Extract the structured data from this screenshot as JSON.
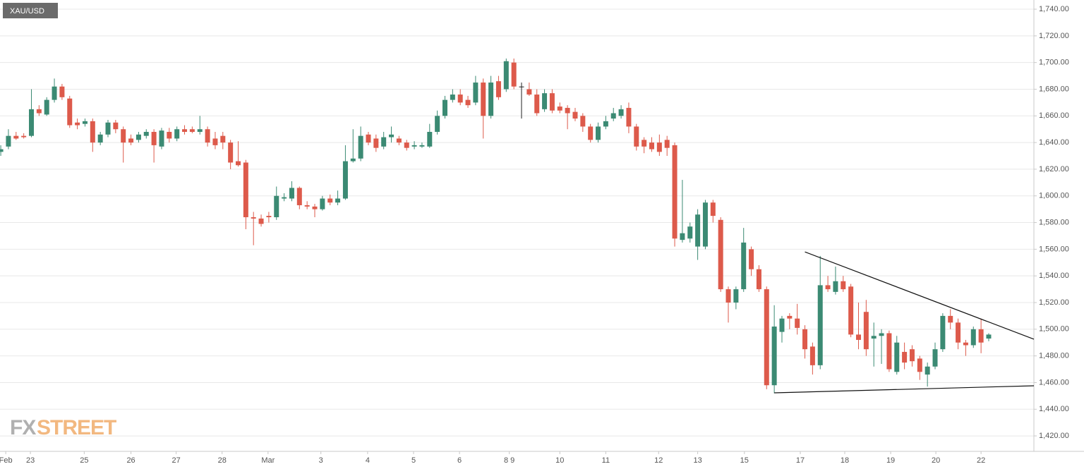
{
  "chart_data": {
    "type": "candlestick",
    "title": "XAU/USD",
    "watermark": [
      "FX",
      "STREET"
    ],
    "up_color": "#3b8a73",
    "down_color": "#dd5a4b",
    "flat_color": "#222222",
    "grid": true,
    "ylim": [
      1408.4,
      1746.9
    ],
    "yticks": [
      {
        "value": 1420,
        "label": "1,420.00"
      },
      {
        "value": 1440,
        "label": "1,440.00"
      },
      {
        "value": 1460,
        "label": "1,460.00"
      },
      {
        "value": 1480,
        "label": "1,480.00"
      },
      {
        "value": 1500,
        "label": "1,500.00"
      },
      {
        "value": 1520,
        "label": "1,520.00"
      },
      {
        "value": 1540,
        "label": "1,540.00"
      },
      {
        "value": 1560,
        "label": "1,560.00"
      },
      {
        "value": 1580,
        "label": "1,580.00"
      },
      {
        "value": 1600,
        "label": "1,600.00"
      },
      {
        "value": 1620,
        "label": "1,620.00"
      },
      {
        "value": 1640,
        "label": "1,640.00"
      },
      {
        "value": 1660,
        "label": "1,660.00"
      },
      {
        "value": 1680,
        "label": "1,680.00"
      },
      {
        "value": 1700,
        "label": "1,700.00"
      },
      {
        "value": 1720,
        "label": "1,720.00"
      },
      {
        "value": 1740,
        "label": "1,740.00"
      }
    ],
    "xlim": [
      -0.1,
      134.9
    ],
    "xticks": [
      {
        "value": 0.65,
        "label": "Feb"
      },
      {
        "value": 3.87,
        "label": "23"
      },
      {
        "value": 10.9,
        "label": "25"
      },
      {
        "value": 17,
        "label": "26"
      },
      {
        "value": 22.9,
        "label": "27"
      },
      {
        "value": 28.9,
        "label": "28"
      },
      {
        "value": 34.9,
        "label": "Mar"
      },
      {
        "value": 41.8,
        "label": "3"
      },
      {
        "value": 47.9,
        "label": "4"
      },
      {
        "value": 53.9,
        "label": "5"
      },
      {
        "value": 59.9,
        "label": "6"
      },
      {
        "value": 66.4,
        "label": "8 9"
      },
      {
        "value": 73,
        "label": "10"
      },
      {
        "value": 79,
        "label": "11"
      },
      {
        "value": 85.9,
        "label": "12"
      },
      {
        "value": 91,
        "label": "13"
      },
      {
        "value": 97.1,
        "label": "15"
      },
      {
        "value": 104.4,
        "label": "17"
      },
      {
        "value": 110.2,
        "label": "18"
      },
      {
        "value": 116.2,
        "label": "19"
      },
      {
        "value": 122.1,
        "label": "20"
      },
      {
        "value": 128,
        "label": "22"
      }
    ],
    "series": [
      {
        "open": [
          1633,
          1637,
          1645,
          1645,
          1645,
          1665,
          1661,
          1672,
          1682,
          1673,
          1655,
          1654,
          1656,
          1640,
          1646,
          1655,
          1650,
          1643,
          1642,
          1645,
          1648,
          1637,
          1648,
          1643,
          1650,
          1650,
          1648,
          1650,
          1643,
          1645,
          1640,
          1626,
          1625,
          1584,
          1583,
          1585,
          1584,
          1598,
          1598,
          1606,
          1593,
          1592,
          1590,
          1598,
          1595,
          1598,
          1626,
          1628,
          1646,
          1643,
          1637,
          1644,
          1643,
          1640,
          1637,
          1637,
          1637,
          1648,
          1660,
          1672,
          1676,
          1672,
          1670,
          1685,
          1660,
          1686,
          1680,
          1700,
          1682,
          1680,
          1676,
          1665,
          1677,
          1667,
          1666,
          1663,
          1660,
          1652,
          1642,
          1652,
          1658,
          1660,
          1666,
          1652,
          1642,
          1640,
          1640,
          1642,
          1638,
          1567,
          1568,
          1562,
          1562,
          1595,
          1582,
          1530,
          1520,
          1530,
          1560,
          1545,
          1530,
          1458,
          1498,
          1510,
          1508,
          1500,
          1487,
          1473,
          1533,
          1528,
          1536,
          1532,
          1496,
          1513,
          1493,
          1495,
          1497,
          1468,
          1483,
          1485,
          1478,
          1466,
          1472,
          1485,
          1510,
          1505,
          1490,
          1488,
          1500,
          1493
        ],
        "high": [
          1638,
          1650,
          1648,
          1647,
          1680,
          1668,
          1674,
          1688,
          1684,
          1675,
          1658,
          1658,
          1658,
          1648,
          1657,
          1657,
          1652,
          1646,
          1648,
          1650,
          1650,
          1651,
          1651,
          1652,
          1653,
          1652,
          1660,
          1652,
          1648,
          1648,
          1642,
          1641,
          1627,
          1588,
          1586,
          1588,
          1607,
          1602,
          1611,
          1607,
          1596,
          1594,
          1600,
          1601,
          1604,
          1638,
          1650,
          1652,
          1648,
          1646,
          1648,
          1652,
          1645,
          1642,
          1641,
          1640,
          1654,
          1664,
          1675,
          1680,
          1680,
          1675,
          1690,
          1688,
          1690,
          1690,
          1703,
          1703,
          1685,
          1685,
          1680,
          1680,
          1680,
          1670,
          1668,
          1666,
          1662,
          1654,
          1655,
          1660,
          1666,
          1668,
          1670,
          1654,
          1644,
          1644,
          1646,
          1645,
          1640,
          1612,
          1580,
          1590,
          1597,
          1597,
          1584,
          1532,
          1532,
          1576,
          1562,
          1548,
          1532,
          1518,
          1510,
          1512,
          1519,
          1503,
          1490,
          1555,
          1540,
          1547,
          1540,
          1534,
          1520,
          1522,
          1505,
          1500,
          1499,
          1495,
          1490,
          1488,
          1480,
          1475,
          1490,
          1512,
          1515,
          1508,
          1492,
          1502,
          1508,
          1497
        ],
        "low": [
          1630,
          1635,
          1642,
          1643,
          1644,
          1660,
          1660,
          1670,
          1672,
          1651,
          1650,
          1652,
          1633,
          1638,
          1644,
          1647,
          1625,
          1638,
          1640,
          1643,
          1625,
          1635,
          1640,
          1641,
          1646,
          1647,
          1646,
          1637,
          1635,
          1635,
          1620,
          1622,
          1575,
          1563,
          1577,
          1580,
          1582,
          1596,
          1596,
          1590,
          1590,
          1584,
          1589,
          1593,
          1593,
          1597,
          1625,
          1626,
          1638,
          1633,
          1635,
          1640,
          1638,
          1634,
          1635,
          1636,
          1636,
          1646,
          1658,
          1670,
          1668,
          1666,
          1668,
          1643,
          1658,
          1672,
          1678,
          1680,
          1658,
          1675,
          1660,
          1663,
          1662,
          1662,
          1650,
          1656,
          1648,
          1640,
          1640,
          1650,
          1656,
          1658,
          1647,
          1634,
          1632,
          1633,
          1630,
          1630,
          1562,
          1565,
          1565,
          1552,
          1560,
          1580,
          1528,
          1505,
          1515,
          1528,
          1540,
          1528,
          1455,
          1452,
          1490,
          1500,
          1496,
          1478,
          1466,
          1470,
          1528,
          1526,
          1528,
          1494,
          1485,
          1480,
          1472,
          1474,
          1468,
          1466,
          1470,
          1472,
          1462,
          1457,
          1470,
          1483,
          1500,
          1485,
          1480,
          1486,
          1482,
          1491
        ],
        "close": [
          1635,
          1645,
          1643,
          1644,
          1665,
          1662,
          1672,
          1682,
          1674,
          1653,
          1653,
          1656,
          1640,
          1646,
          1655,
          1650,
          1640,
          1640,
          1646,
          1648,
          1638,
          1649,
          1643,
          1650,
          1648,
          1648,
          1650,
          1640,
          1638,
          1640,
          1625,
          1623,
          1584,
          1583,
          1579,
          1584,
          1600,
          1599,
          1606,
          1593,
          1592,
          1590,
          1598,
          1595,
          1598,
          1626,
          1628,
          1645,
          1640,
          1636,
          1644,
          1646,
          1640,
          1636,
          1638,
          1638,
          1648,
          1660,
          1672,
          1676,
          1670,
          1668,
          1685,
          1660,
          1685,
          1674,
          1701,
          1682,
          1682,
          1676,
          1662,
          1677,
          1664,
          1664,
          1662,
          1658,
          1652,
          1642,
          1652,
          1656,
          1662,
          1665,
          1652,
          1637,
          1637,
          1635,
          1633,
          1636,
          1568,
          1572,
          1577,
          1586,
          1595,
          1585,
          1530,
          1520,
          1530,
          1565,
          1545,
          1530,
          1458,
          1502,
          1508,
          1508,
          1501,
          1485,
          1473,
          1533,
          1530,
          1536,
          1530,
          1496,
          1492,
          1485,
          1495,
          1497,
          1470,
          1490,
          1475,
          1476,
          1468,
          1472,
          1485,
          1510,
          1505,
          1490,
          1488,
          1500,
          1490,
          1496
        ]
      }
    ],
    "trendlines": [
      {
        "x": [
          105,
          134.9
        ],
        "y": [
          1558,
          1492.5
        ]
      },
      {
        "x": [
          101,
          134.9
        ],
        "y": [
          1452.3,
          1457.6
        ]
      }
    ]
  }
}
